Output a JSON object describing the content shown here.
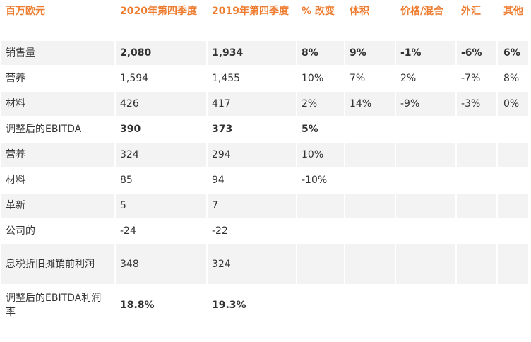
{
  "header": [
    "百万欧元",
    "2020年第四季度",
    "2019年第四季度",
    "% 改变",
    "体积",
    "价格/混合",
    "外汇",
    "其他"
  ],
  "rows": [
    {
      "cells": [
        "销售量",
        "2,080",
        "1,934",
        "8%",
        "9%",
        "-1%",
        "-6%",
        "6%"
      ],
      "bold": [
        false,
        true,
        true,
        true,
        true,
        true,
        true,
        true
      ]
    },
    {
      "cells": [
        "营养",
        "1,594",
        "1,455",
        "10%",
        "7%",
        "2%",
        "-7%",
        "8%"
      ],
      "bold": [
        false,
        false,
        false,
        false,
        false,
        false,
        false,
        false
      ]
    },
    {
      "cells": [
        "材料",
        "426",
        "417",
        "2%",
        "14%",
        "-9%",
        "-3%",
        "0%"
      ],
      "bold": [
        false,
        false,
        false,
        false,
        false,
        false,
        false,
        false
      ]
    },
    {
      "cells": [
        "调整后的EBITDA",
        "390",
        "373",
        "5%",
        "",
        "",
        "",
        ""
      ],
      "bold": [
        false,
        true,
        true,
        true,
        false,
        false,
        false,
        false
      ]
    },
    {
      "cells": [
        "营养",
        "324",
        "294",
        "10%",
        "",
        "",
        "",
        ""
      ],
      "bold": [
        false,
        false,
        false,
        false,
        false,
        false,
        false,
        false
      ]
    },
    {
      "cells": [
        "材料",
        "85",
        "94",
        "-10%",
        "",
        "",
        "",
        ""
      ],
      "bold": [
        false,
        false,
        false,
        false,
        false,
        false,
        false,
        false
      ]
    },
    {
      "cells": [
        "革新",
        "5",
        "7",
        "",
        "",
        "",
        "",
        ""
      ],
      "bold": [
        false,
        false,
        false,
        false,
        false,
        false,
        false,
        false
      ]
    },
    {
      "cells": [
        "公司的",
        "-24",
        "-22",
        "",
        "",
        "",
        "",
        ""
      ],
      "bold": [
        false,
        false,
        false,
        false,
        false,
        false,
        false,
        false
      ]
    },
    {
      "cells": [
        "息税折旧摊销前利润",
        "348",
        "324",
        "",
        "",
        "",
        "",
        ""
      ],
      "bold": [
        false,
        false,
        false,
        false,
        false,
        false,
        false,
        false
      ]
    },
    {
      "cells": [
        "调整后的EBITDA利润率",
        "18.8%",
        "19.3%",
        "",
        "",
        "",
        "",
        ""
      ],
      "bold": [
        false,
        true,
        true,
        false,
        false,
        false,
        false,
        false
      ]
    }
  ],
  "colors": {
    "header_text": "#ee7d31",
    "body_text": "#333333",
    "stripe": "#f3f3f3"
  }
}
